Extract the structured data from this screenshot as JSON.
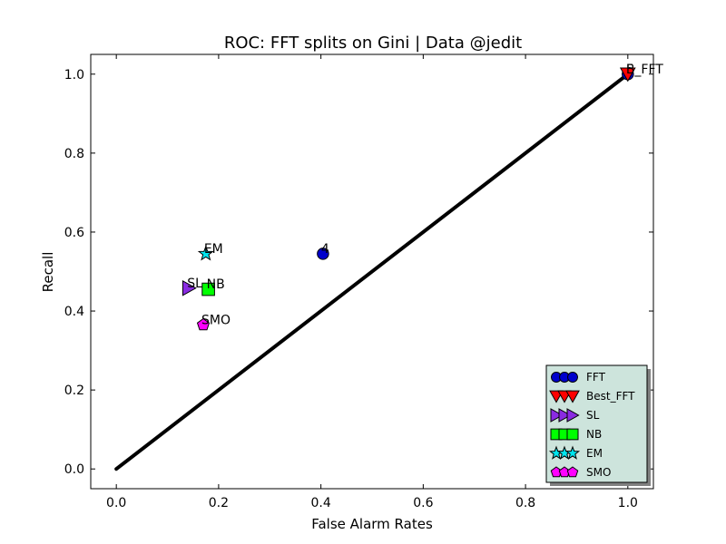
{
  "chart_data": {
    "type": "scatter",
    "title": "ROC: FFT splits on Gini  |  Data @jedit",
    "xlabel": "False Alarm Rates",
    "ylabel": "Recall",
    "xlim": [
      -0.05,
      1.05
    ],
    "ylim": [
      -0.05,
      1.05
    ],
    "xticks": [
      0.0,
      0.2,
      0.4,
      0.6,
      0.8,
      1.0
    ],
    "yticks": [
      0.0,
      0.2,
      0.4,
      0.6,
      0.8,
      1.0
    ],
    "xtick_labels": [
      "0.0",
      "0.2",
      "0.4",
      "0.6",
      "0.8",
      "1.0"
    ],
    "ytick_labels": [
      "0.0",
      "0.2",
      "0.4",
      "0.6",
      "0.8",
      "1.0"
    ],
    "grid": false,
    "legend_position": "lower-right",
    "diagonal": {
      "x": [
        0.0,
        1.0
      ],
      "y": [
        0.0,
        1.0
      ],
      "color": "#000000"
    },
    "series": [
      {
        "name": "FFT",
        "marker": "circle",
        "color": "#0000cc",
        "points": [
          {
            "x": 0.404,
            "y": 0.545,
            "label": "4"
          },
          {
            "x": 1.0,
            "y": 1.0,
            "label": "5"
          }
        ]
      },
      {
        "name": "Best_FFT",
        "marker": "triangle-down",
        "color": "#ff0000",
        "points": [
          {
            "x": 1.0,
            "y": 1.0,
            "label": "B_FFT"
          }
        ]
      },
      {
        "name": "SL",
        "marker": "triangle-right",
        "color": "#8a2be2",
        "points": [
          {
            "x": 0.142,
            "y": 0.458,
            "label": "SL"
          }
        ]
      },
      {
        "name": "NB",
        "marker": "square",
        "color": "#00ff00",
        "points": [
          {
            "x": 0.18,
            "y": 0.455,
            "label": "NB"
          }
        ]
      },
      {
        "name": "EM",
        "marker": "star",
        "color": "#00e5ee",
        "points": [
          {
            "x": 0.175,
            "y": 0.545,
            "label": "EM"
          }
        ]
      },
      {
        "name": "SMO",
        "marker": "pentagon",
        "color": "#ff00ff",
        "points": [
          {
            "x": 0.17,
            "y": 0.365,
            "label": "SMO"
          }
        ]
      }
    ],
    "legend_bg": "#cde4dc"
  }
}
